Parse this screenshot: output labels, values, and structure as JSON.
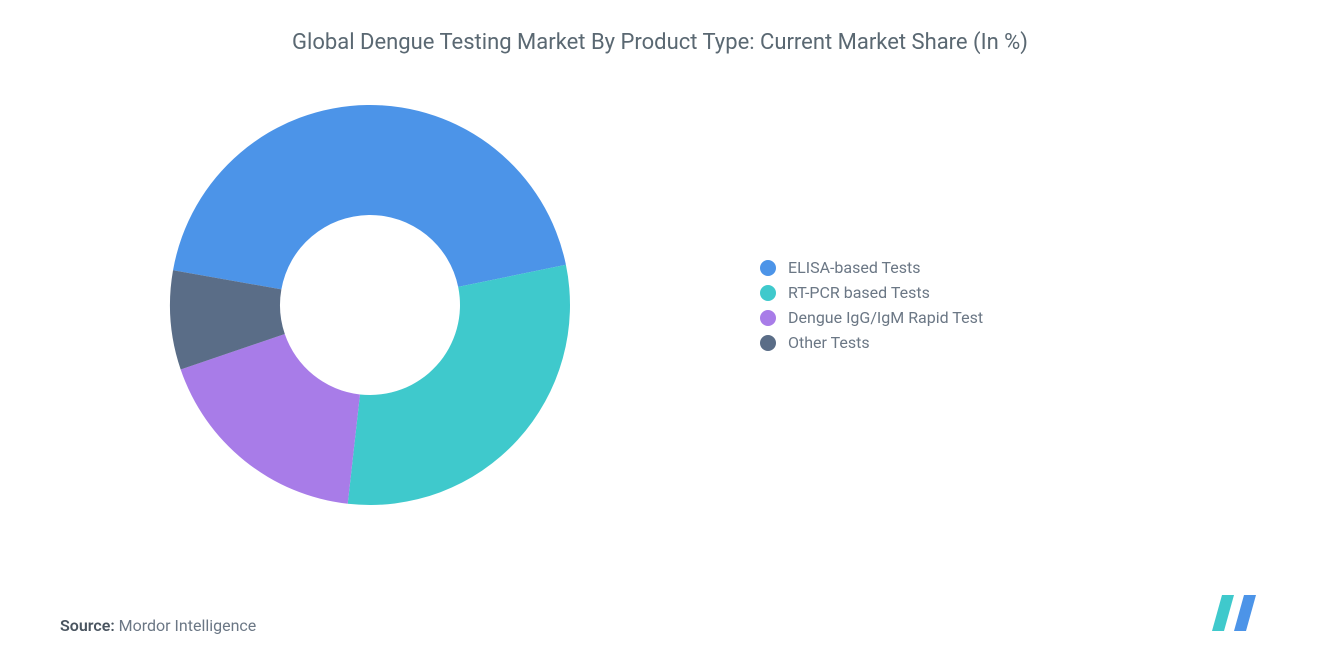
{
  "title": "Global Dengue Testing Market By Product Type: Current Market Share (In %)",
  "title_fontsize": 22,
  "title_color": "#5a6872",
  "chart": {
    "type": "donut",
    "slices": [
      {
        "label": "ELISA-based Tests",
        "value": 44,
        "color": "#4c94e8"
      },
      {
        "label": "RT-PCR based Tests",
        "value": 30,
        "color": "#3fc9cc"
      },
      {
        "label": "Dengue IgG/IgM Rapid Test",
        "value": 18,
        "color": "#a87ce8"
      },
      {
        "label": "Other Tests",
        "value": 8,
        "color": "#5a6d87"
      }
    ],
    "start_angle_deg": -170,
    "direction": "cw",
    "outer_radius": 200,
    "inner_radius": 90,
    "background_color": "#ffffff",
    "legend_fontsize": 16,
    "legend_color": "#6b7785",
    "swatch_size": 16
  },
  "source": {
    "label": "Source:",
    "name": "Mordor Intelligence",
    "fontsize": 16
  },
  "logo": {
    "primary": "#3fc9cc",
    "secondary": "#4c94e8",
    "width": 60,
    "height": 36
  }
}
